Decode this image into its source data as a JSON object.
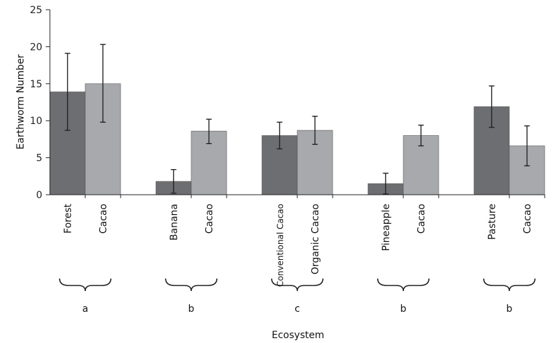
{
  "chart_data": {
    "type": "bar",
    "ylabel": "Earthworm Number",
    "xlabel": "Ecosystem",
    "ylim": [
      0,
      25
    ],
    "yticks": [
      0,
      5,
      10,
      15,
      20,
      25
    ],
    "grid": false,
    "colors": {
      "first": "#6d6e71",
      "second": "#a7a9ac",
      "axis": "#222222"
    },
    "groups": [
      {
        "label": "a",
        "bars": [
          {
            "category": "Forest",
            "value": 13.9,
            "err_low": 8.7,
            "err_high": 19.1
          },
          {
            "category": "Cacao",
            "value": 15.0,
            "err_low": 9.8,
            "err_high": 20.3
          }
        ]
      },
      {
        "label": "b",
        "bars": [
          {
            "category": "Banana",
            "value": 1.8,
            "err_low": 0.2,
            "err_high": 3.4
          },
          {
            "category": "Cacao",
            "value": 8.6,
            "err_low": 6.9,
            "err_high": 10.2
          }
        ]
      },
      {
        "label": "c",
        "bars": [
          {
            "category": "Conventional Cacao",
            "value": 8.0,
            "err_low": 6.2,
            "err_high": 9.8
          },
          {
            "category": "Organic Cacao",
            "value": 8.7,
            "err_low": 6.8,
            "err_high": 10.6
          }
        ]
      },
      {
        "label": "b",
        "bars": [
          {
            "category": "Pineapple",
            "value": 1.5,
            "err_low": 0.1,
            "err_high": 2.9
          },
          {
            "category": "Cacao",
            "value": 8.0,
            "err_low": 6.6,
            "err_high": 9.4
          }
        ]
      },
      {
        "label": "b",
        "bars": [
          {
            "category": "Pasture",
            "value": 11.9,
            "err_low": 9.1,
            "err_high": 14.7
          },
          {
            "category": "Cacao",
            "value": 6.6,
            "err_low": 3.9,
            "err_high": 9.3
          }
        ]
      }
    ]
  }
}
